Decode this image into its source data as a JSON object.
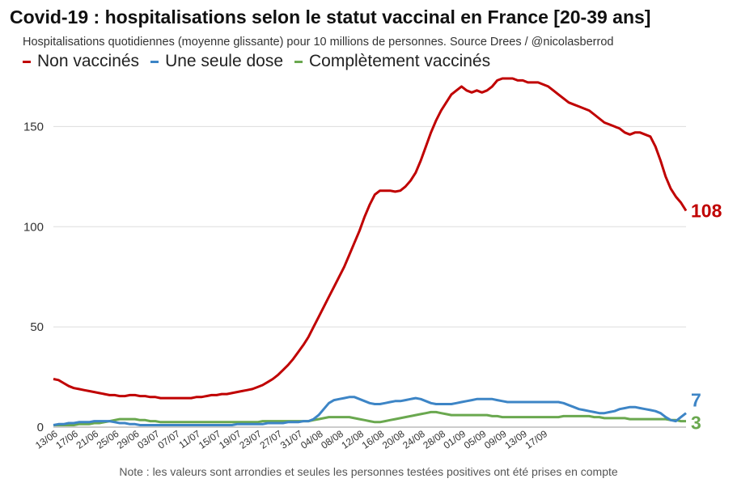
{
  "title": "Covid-19 : hospitalisations selon le statut vaccinal en France [20-39 ans]",
  "subtitle": "Hospitalisations quotidiennes (moyenne glissante) pour 10 millions de personnes. Source Drees / @nicolasberrod",
  "note": "Note : les valeurs sont arrondies et seules les personnes testées positives ont été prises en compte",
  "legend": [
    {
      "label": "Non vaccinés",
      "color": "#c00000"
    },
    {
      "label": "Une seule dose",
      "color": "#3d85c6"
    },
    {
      "label": "Complètement vaccinés",
      "color": "#6aa84f"
    }
  ],
  "chart_data": {
    "type": "line",
    "y_ticks": [
      0,
      50,
      100,
      150
    ],
    "ylim": [
      0,
      176
    ],
    "grid": true,
    "legend_position": "top-left",
    "x_tick_labels": [
      "13/06",
      "17/06",
      "21/06",
      "25/06",
      "29/06",
      "03/07",
      "07/07",
      "11/07",
      "15/07",
      "19/07",
      "23/07",
      "27/07",
      "31/07",
      "04/08",
      "08/08",
      "12/08",
      "16/08",
      "20/08",
      "24/08",
      "28/08",
      "01/09",
      "05/09",
      "09/09",
      "13/09",
      "17/09"
    ],
    "x_tick_step_days": 4,
    "series": [
      {
        "name": "Non vaccinés",
        "color": "#c00000",
        "end_label": "108",
        "values": [
          24,
          23.5,
          22,
          20.5,
          19.5,
          19,
          18.5,
          18,
          17.5,
          17,
          16.5,
          16,
          16,
          15.5,
          15.5,
          16,
          16,
          15.5,
          15.5,
          15,
          15,
          14.5,
          14.5,
          14.5,
          14.5,
          14.5,
          14.5,
          14.5,
          15,
          15,
          15.5,
          16,
          16,
          16.5,
          16.5,
          17,
          17.5,
          18,
          18.5,
          19,
          20,
          21,
          22.5,
          24,
          26,
          28.5,
          31,
          34,
          37.5,
          41,
          45,
          50,
          55,
          60,
          65,
          70,
          75,
          80,
          86,
          92,
          98,
          105,
          111,
          116,
          118,
          118,
          118,
          117.5,
          118,
          120,
          123,
          127,
          133,
          140,
          147,
          153,
          158,
          162,
          166,
          168,
          170,
          168,
          167,
          168,
          167,
          168,
          170,
          173,
          174,
          174,
          174,
          173,
          173,
          172,
          172,
          172,
          171,
          170,
          168,
          166,
          164,
          162,
          161,
          160,
          159,
          158,
          156,
          154,
          152,
          151,
          150,
          149,
          147,
          146,
          147,
          147,
          146,
          145,
          140,
          133,
          125,
          119,
          115,
          112,
          108
        ]
      },
      {
        "name": "Une seule dose",
        "color": "#3d85c6",
        "end_label": "7",
        "values": [
          1,
          1.5,
          1.5,
          2,
          2,
          2.5,
          2.5,
          2.5,
          3,
          3,
          3,
          3,
          2.5,
          2,
          2,
          1.5,
          1.5,
          1,
          1,
          1,
          1,
          1,
          1,
          1,
          1,
          1,
          1,
          1,
          1,
          1,
          1,
          1,
          1,
          1,
          1,
          1,
          1.5,
          1.5,
          1.5,
          1.5,
          1.5,
          1.5,
          2,
          2,
          2,
          2,
          2.5,
          2.5,
          2.5,
          3,
          3,
          4,
          6,
          9,
          12,
          13.5,
          14,
          14.5,
          15,
          15,
          14,
          13,
          12,
          11.5,
          11.5,
          12,
          12.5,
          13,
          13,
          13.5,
          14,
          14.5,
          14,
          13,
          12,
          11.5,
          11.5,
          11.5,
          11.5,
          12,
          12.5,
          13,
          13.5,
          14,
          14,
          14,
          14,
          13.5,
          13,
          12.5,
          12.5,
          12.5,
          12.5,
          12.5,
          12.5,
          12.5,
          12.5,
          12.5,
          12.5,
          12.5,
          12,
          11,
          10,
          9,
          8.5,
          8,
          7.5,
          7,
          7,
          7.5,
          8,
          9,
          9.5,
          10,
          10,
          9.5,
          9,
          8.5,
          8,
          7,
          5,
          3.5,
          3,
          5,
          7
        ]
      },
      {
        "name": "Complètement vaccinés",
        "color": "#6aa84f",
        "end_label": "3",
        "values": [
          1,
          1,
          1,
          1,
          1,
          1.5,
          1.5,
          1.5,
          2,
          2,
          2.5,
          3,
          3.5,
          4,
          4,
          4,
          4,
          3.5,
          3.5,
          3,
          3,
          2.5,
          2.5,
          2.5,
          2.5,
          2.5,
          2.5,
          2.5,
          2.5,
          2.5,
          2.5,
          2.5,
          2.5,
          2.5,
          2.5,
          2.5,
          2.5,
          2.5,
          2.5,
          2.5,
          2.5,
          3,
          3,
          3,
          3,
          3,
          3,
          3,
          3,
          3,
          3,
          3.5,
          4,
          4.5,
          5,
          5,
          5,
          5,
          5,
          4.5,
          4,
          3.5,
          3,
          2.5,
          2.5,
          3,
          3.5,
          4,
          4.5,
          5,
          5.5,
          6,
          6.5,
          7,
          7.5,
          7.5,
          7,
          6.5,
          6,
          6,
          6,
          6,
          6,
          6,
          6,
          6,
          5.5,
          5.5,
          5,
          5,
          5,
          5,
          5,
          5,
          5,
          5,
          5,
          5,
          5,
          5,
          5.5,
          5.5,
          5.5,
          5.5,
          5.5,
          5.5,
          5,
          5,
          4.5,
          4.5,
          4.5,
          4.5,
          4.5,
          4,
          4,
          4,
          4,
          4,
          4,
          4,
          4,
          3.5,
          3.5,
          3,
          3
        ]
      }
    ]
  }
}
